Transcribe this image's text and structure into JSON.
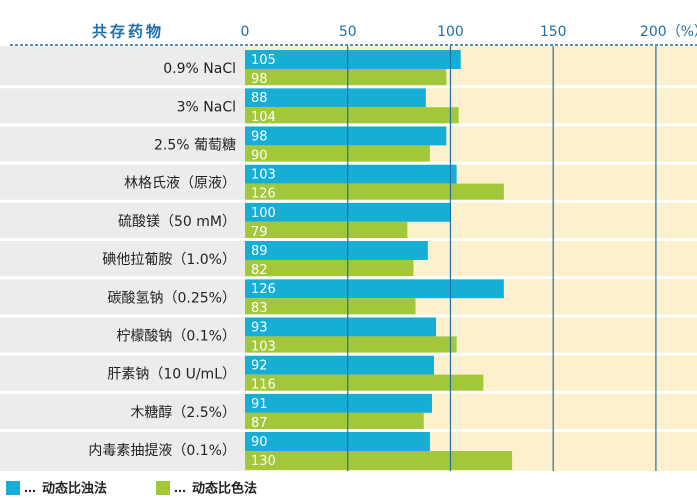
{
  "chart_data": {
    "type": "bar",
    "orientation": "horizontal",
    "y_label": "共存药物",
    "categories": [
      "0.9% NaCl",
      "3% NaCl",
      "2.5%  葡萄糖",
      "林格氏液（原液）",
      "硫酸镁（50 mM）",
      "碘他拉葡胺（1.0%）",
      "碳酸氢钠（0.25%）",
      "柠檬酸钠（0.1%）",
      "肝素钠（10 U/mL）",
      "木糖醇（2.5%）",
      "内毒素抽提液（0.1%）"
    ],
    "series": [
      {
        "name": "动态比浊法",
        "color": "#17aed6",
        "values": [
          105,
          88,
          98,
          103,
          100,
          89,
          126,
          93,
          92,
          91,
          90
        ]
      },
      {
        "name": "动态比色法",
        "color": "#a3c73a",
        "values": [
          98,
          104,
          90,
          126,
          79,
          82,
          83,
          103,
          116,
          87,
          130
        ]
      }
    ],
    "xlim": [
      0,
      220
    ],
    "xticks": [
      0,
      50,
      100,
      150,
      {
        "value": 200,
        "label": "200（%）"
      }
    ],
    "grid": true,
    "legend": "bottom-left"
  }
}
